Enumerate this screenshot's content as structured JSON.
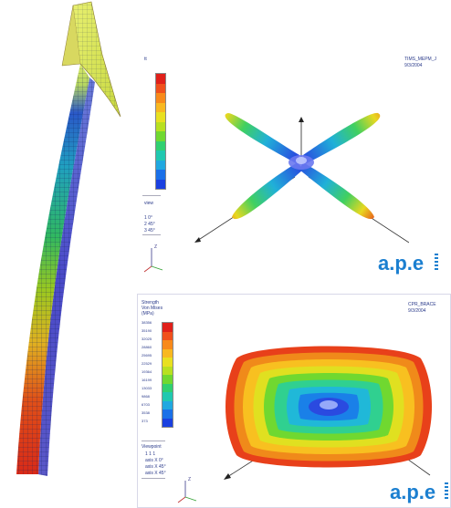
{
  "panel_top": {
    "header_line1": "TIMS_MEPM_J",
    "header_line2": "9/3/2004",
    "legend_label": "tt",
    "legend_colors": [
      "#e0201a",
      "#f0501c",
      "#f88a1a",
      "#f8b820",
      "#e8e020",
      "#b8e020",
      "#70d830",
      "#30d070",
      "#20c8b0",
      "#20a8e0",
      "#1a70e8",
      "#1a40e0"
    ],
    "view_label": "view",
    "view_lines": [
      "1 0°",
      "2 45°",
      "3 45°"
    ],
    "axis_labels": [
      "Z",
      "X",
      "Y"
    ],
    "logo_text": "a.p.e",
    "logo_dots": "...."
  },
  "panel_bottom": {
    "legend_title": [
      "Strength",
      "Von Mises",
      "(MPa)"
    ],
    "legend_values": [
      "38356",
      "35190",
      "32025",
      "28860",
      "25695",
      "22529",
      "19364",
      "16199",
      "13033",
      "9868",
      "6703",
      "3538",
      "373"
    ],
    "legend_colors": [
      "#e0201a",
      "#f0501c",
      "#f88a1a",
      "#f8b820",
      "#e8e020",
      "#b8e020",
      "#70d830",
      "#30d070",
      "#20c8b0",
      "#20a8e0",
      "#1a70e8",
      "#1a40e0"
    ],
    "header_line1": "CPR_BRACE",
    "header_line2": "9/3/2004",
    "view_label": "Viewpoint",
    "view_lines": [
      "1 1 1",
      "axis X 0°",
      "axis X 45°",
      "axis X 45°"
    ],
    "axis_labels": [
      "Z",
      "X",
      "Y"
    ],
    "logo_text": "a.p.e",
    "logo_dots": "...."
  }
}
